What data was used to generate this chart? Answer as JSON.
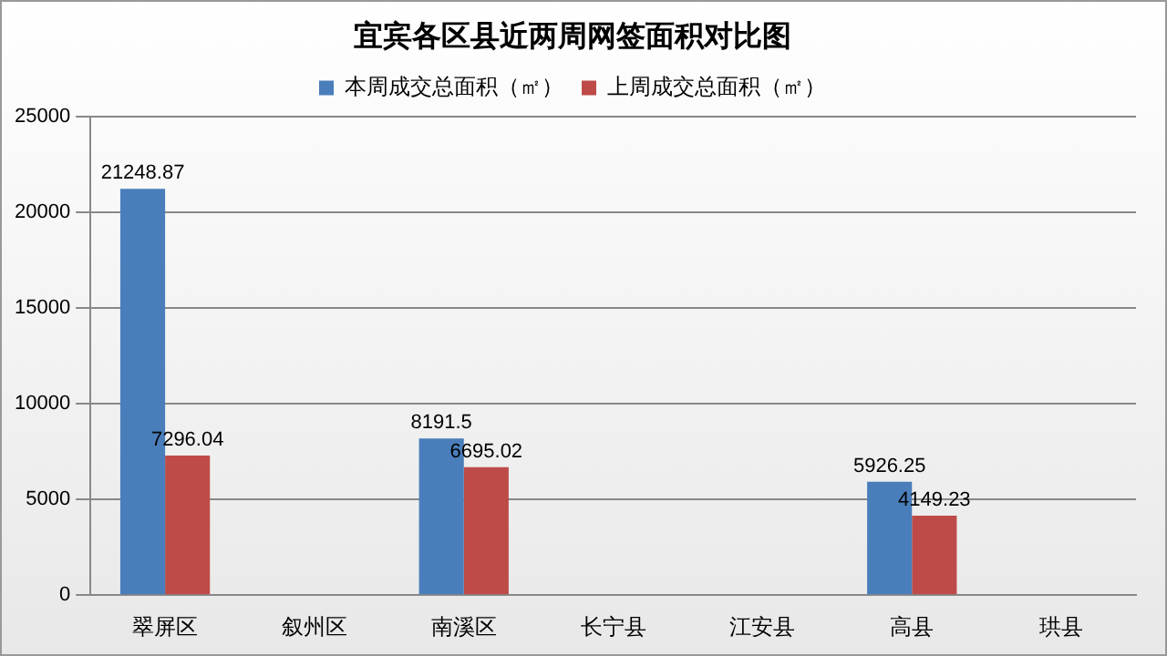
{
  "chart_data": {
    "type": "bar",
    "title": "宜宾各区县近两周网签面积对比图",
    "categories": [
      "翠屏区",
      "叙州区",
      "南溪区",
      "长宁县",
      "江安县",
      "高县",
      "珙县"
    ],
    "series": [
      {
        "name": "本周成交总面积（㎡）",
        "color": "#4a7ebb",
        "values": [
          21248.87,
          null,
          8191.5,
          null,
          null,
          5926.25,
          null
        ]
      },
      {
        "name": "上周成交总面积（㎡）",
        "color": "#be4b48",
        "values": [
          7296.04,
          null,
          6695.02,
          null,
          null,
          4149.23,
          null
        ]
      }
    ],
    "ylim": [
      0,
      25000
    ],
    "yticks": [
      0,
      5000,
      10000,
      15000,
      20000,
      25000
    ],
    "grid": "y",
    "legend": "top",
    "data_labels": true
  }
}
